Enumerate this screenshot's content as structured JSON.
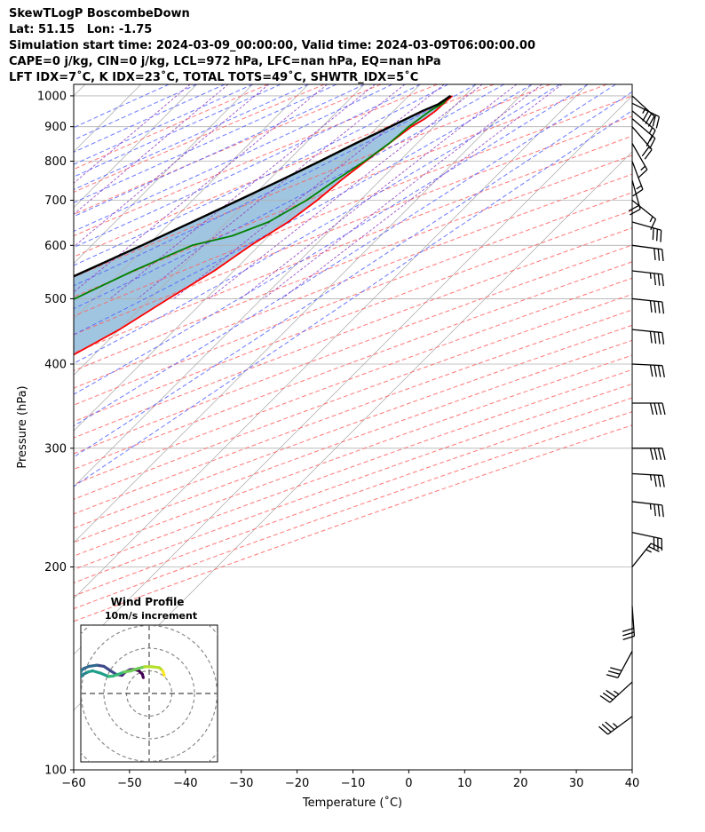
{
  "header": {
    "line1": "SkewTLogP BoscombeDown",
    "line2": "Lat: 51.15   Lon: -1.75",
    "line3": "Simulation start time: 2024-03-09_00:00:00, Valid time: 2024-03-09T06:00:00.00",
    "line4": "CAPE=0 j/kg, CIN=0 j/kg, LCL=972 hPa, LFC=nan hPa, EQ=nan hPa",
    "line5": "LFT IDX=7˚C, K IDX=23˚C, TOTAL TOTS=49˚C, SHWTR_IDX=5˚C"
  },
  "chart_data": {
    "type": "line",
    "subtype": "skew-t log-p",
    "xlabel": "Temperature (˚C)",
    "ylabel": "Pressure (hPa)",
    "xlim": [
      -60,
      40
    ],
    "ylim": [
      1040,
      100
    ],
    "yscale": "log",
    "x_ticks": [
      "−60",
      "−50",
      "−40",
      "−30",
      "−20",
      "−10",
      "0",
      "10",
      "20",
      "30",
      "40"
    ],
    "x_tick_values": [
      -60,
      -50,
      -40,
      -30,
      -20,
      -10,
      0,
      10,
      20,
      30,
      40
    ],
    "y_ticks": [
      "100",
      "200",
      "300",
      "400",
      "500",
      "600",
      "700",
      "800",
      "900",
      "1000"
    ],
    "y_tick_values": [
      100,
      200,
      300,
      400,
      500,
      600,
      700,
      800,
      900,
      1000
    ],
    "grid": true,
    "colors": {
      "temperature": "#ff0000",
      "dewpoint": "#008000",
      "parcel": "#000000",
      "fill": "#a0c5e0",
      "dry_adiabat": "#ff6060",
      "moist_adiabat": "#5060ff",
      "isotherm": "#b0b0b0",
      "mixing_ratio": "#9040c0"
    },
    "series": [
      {
        "key": "temperature",
        "points": [
          [
            1000,
            7.8
          ],
          [
            975,
            7.6
          ],
          [
            950,
            7.5
          ],
          [
            925,
            7.0
          ],
          [
            900,
            6.0
          ],
          [
            850,
            5.0
          ],
          [
            800,
            4.0
          ],
          [
            750,
            3.0
          ],
          [
            700,
            2.3
          ],
          [
            650,
            1.0
          ],
          [
            600,
            -1.5
          ],
          [
            550,
            -3.5
          ],
          [
            500,
            -6.7
          ],
          [
            450,
            -10.0
          ],
          [
            400,
            -15.0
          ],
          [
            350,
            -21.0
          ],
          [
            300,
            -28.0
          ],
          [
            275,
            -32.5
          ],
          [
            250,
            -37.5
          ],
          [
            230,
            -38.5
          ],
          [
            215,
            -38.8
          ],
          [
            200,
            -42.0
          ],
          [
            185,
            -45.2
          ],
          [
            170,
            -49.0
          ],
          [
            160,
            -50.5
          ],
          [
            150,
            -52.0
          ],
          [
            140,
            -53.5
          ],
          [
            130,
            -55.0
          ],
          [
            120,
            -56.8
          ],
          [
            110,
            -58.3
          ],
          [
            100,
            -59.0
          ]
        ]
      },
      {
        "key": "dewpoint",
        "points": [
          [
            1000,
            7.3
          ],
          [
            975,
            7.5
          ],
          [
            950,
            6.5
          ],
          [
            900,
            5.5
          ],
          [
            850,
            5.0
          ],
          [
            800,
            3.8
          ],
          [
            750,
            2.0
          ],
          [
            700,
            0.4
          ],
          [
            650,
            -2.5
          ],
          [
            620,
            -6.5
          ],
          [
            600,
            -12.0
          ],
          [
            550,
            -18.0
          ],
          [
            500,
            -23.5
          ],
          [
            450,
            -30.0
          ],
          [
            425,
            -31.7
          ],
          [
            410,
            -33.5
          ],
          [
            400,
            -36.2
          ],
          [
            375,
            -40.0
          ],
          [
            350,
            -43.0
          ],
          [
            325,
            -43.5
          ],
          [
            300,
            -48.0
          ],
          [
            275,
            -52.0
          ],
          [
            250,
            -53.0
          ],
          [
            230,
            -57.0
          ],
          [
            210,
            -61.0
          ],
          [
            190,
            -68.0
          ],
          [
            180,
            -69.0
          ],
          [
            150,
            -70.0
          ],
          [
            130,
            -71.5
          ],
          [
            110,
            -73.0
          ],
          [
            100,
            -74.5
          ]
        ]
      },
      {
        "key": "parcel",
        "points": [
          [
            1000,
            7.5
          ],
          [
            972,
            6.8
          ],
          [
            950,
            5.2
          ],
          [
            900,
            2.2
          ],
          [
            850,
            -1.0
          ],
          [
            800,
            -4.2
          ],
          [
            750,
            -7.8
          ],
          [
            700,
            -11.8
          ],
          [
            650,
            -16.2
          ],
          [
            600,
            -21.0
          ],
          [
            550,
            -26.5
          ],
          [
            500,
            -32.5
          ],
          [
            450,
            -39.0
          ],
          [
            400,
            -46.2
          ],
          [
            350,
            -54.0
          ],
          [
            300,
            -63.0
          ],
          [
            250,
            -73.0
          ],
          [
            200,
            -85.0
          ],
          [
            150,
            -100.0
          ],
          [
            100,
            -119.0
          ]
        ]
      }
    ]
  },
  "wind_profile": {
    "title": "Wind Profile",
    "subtitle": "10m/s increment",
    "ring_step_ms": 10,
    "hodograph_uv": [
      [
        -2.6,
        7.0
      ],
      [
        -3.0,
        8.5
      ],
      [
        -4.5,
        10.0
      ],
      [
        -6.5,
        10.6
      ],
      [
        -8.5,
        10.5
      ],
      [
        -10.5,
        9.5
      ],
      [
        -12.0,
        8.0
      ],
      [
        -14.5,
        8.4
      ],
      [
        -17.0,
        10.0
      ],
      [
        -20.0,
        12.0
      ],
      [
        -23.0,
        12.5
      ],
      [
        -26.5,
        12.0
      ],
      [
        -29.0,
        11.0
      ],
      [
        -30.0,
        10.0
      ],
      [
        -30.5,
        8.5
      ],
      [
        -30.0,
        7.5
      ],
      [
        -29.0,
        8.5
      ],
      [
        -27.0,
        9.5
      ],
      [
        -25.0,
        10.0
      ],
      [
        -21.5,
        9.0
      ],
      [
        -18.0,
        7.5
      ],
      [
        -16.0,
        7.7
      ],
      [
        -13.5,
        8.5
      ],
      [
        -11.0,
        9.5
      ],
      [
        -8.0,
        10.0
      ],
      [
        -5.0,
        11.0
      ],
      [
        -2.0,
        11.8
      ],
      [
        1.5,
        11.8
      ],
      [
        4.5,
        11.4
      ],
      [
        6.0,
        10.0
      ],
      [
        6.7,
        8.0
      ]
    ]
  },
  "wind_barbs": [
    {
      "p": 1000,
      "u": -26,
      "v": 24
    },
    {
      "p": 975,
      "u": -16,
      "v": 8
    },
    {
      "p": 950,
      "u": -12,
      "v": 10
    },
    {
      "p": 925,
      "u": -14,
      "v": 12
    },
    {
      "p": 900,
      "u": -12,
      "v": 14
    },
    {
      "p": 850,
      "u": -8,
      "v": 14
    },
    {
      "p": 800,
      "u": -6,
      "v": 16
    },
    {
      "p": 750,
      "u": -5,
      "v": 18
    },
    {
      "p": 700,
      "u": -10,
      "v": 8
    },
    {
      "p": 650,
      "u": -28,
      "v": 8
    },
    {
      "p": 600,
      "u": -30,
      "v": 4
    },
    {
      "p": 550,
      "u": -35,
      "v": 4
    },
    {
      "p": 500,
      "u": -38,
      "v": 4
    },
    {
      "p": 450,
      "u": -40,
      "v": 4
    },
    {
      "p": 400,
      "u": -40,
      "v": 2
    },
    {
      "p": 350,
      "u": -40,
      "v": 0
    },
    {
      "p": 300,
      "u": -38,
      "v": 0
    },
    {
      "p": 275,
      "u": -35,
      "v": 2
    },
    {
      "p": 250,
      "u": -34,
      "v": 4
    },
    {
      "p": 225,
      "u": -28,
      "v": 6
    },
    {
      "p": 200,
      "u": -16,
      "v": -20
    },
    {
      "p": 175,
      "u": -2,
      "v": 28
    },
    {
      "p": 150,
      "u": 14,
      "v": 26
    },
    {
      "p": 135,
      "u": 24,
      "v": 22
    },
    {
      "p": 120,
      "u": 30,
      "v": 22
    }
  ]
}
